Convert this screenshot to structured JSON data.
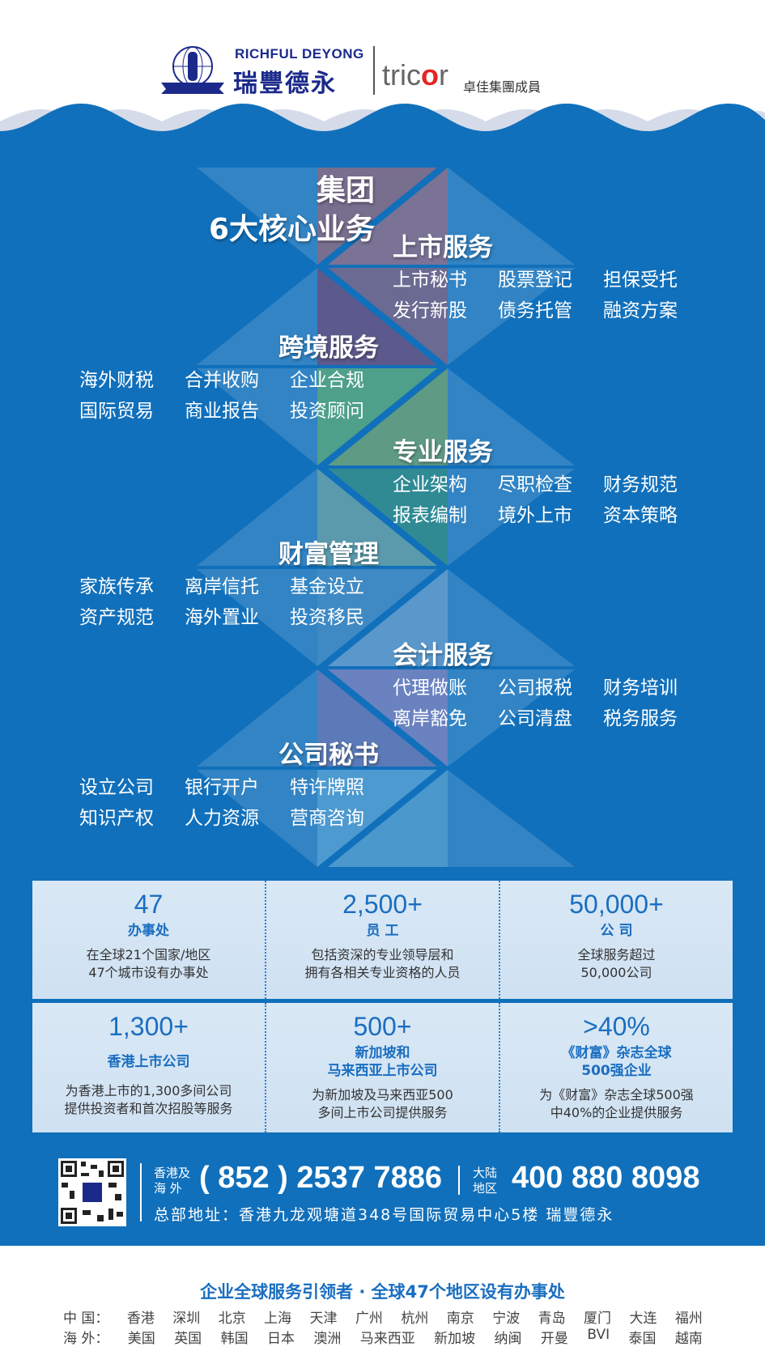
{
  "header": {
    "brand_en": "RICHFUL DEYONG",
    "brand_cn": "瑞豐德永",
    "partner_pre": "tric",
    "partner_o": "o",
    "partner_post": "r",
    "partner_cn": "卓佳集團成員",
    "emblem_text": "RICHFUL DEYONG"
  },
  "colors": {
    "background_blue": "#1170bb",
    "accent_blue": "#1a6ec0",
    "stat_box": "#d6e6f4",
    "tricor_red": "#e52424"
  },
  "intro": {
    "line1": "集团",
    "line2": "6大核心业务"
  },
  "services": [
    {
      "title": "上市服务",
      "items": [
        "上市秘书",
        "股票登记",
        "担保受托",
        "发行新股",
        "债务托管",
        "融资方案"
      ]
    },
    {
      "title": "跨境服务",
      "items": [
        "海外财税",
        "合并收购",
        "企业合规",
        "国际贸易",
        "商业报告",
        "投资顾问"
      ]
    },
    {
      "title": "专业服务",
      "items": [
        "企业架构",
        "尽职检查",
        "财务规范",
        "报表编制",
        "境外上市",
        "资本策略"
      ]
    },
    {
      "title": "财富管理",
      "items": [
        "家族传承",
        "离岸信托",
        "基金设立",
        "资产规范",
        "海外置业",
        "投资移民"
      ]
    },
    {
      "title": "会计服务",
      "items": [
        "代理做账",
        "公司报税",
        "财务培训",
        "离岸豁免",
        "公司清盘",
        "税务服务"
      ]
    },
    {
      "title": "公司秘书",
      "items": [
        "设立公司",
        "银行开户",
        "特许牌照",
        "知识产权",
        "人力资源",
        "营商咨询"
      ]
    }
  ],
  "stats": [
    {
      "number": "47",
      "label": "办事处",
      "desc1": "在全球21个国家/地区",
      "desc2": "47个城市设有办事处"
    },
    {
      "number": "2,500+",
      "label": "员 工",
      "desc1": "包括资深的专业领导层和",
      "desc2": "拥有各相关专业资格的人员"
    },
    {
      "number": "50,000+",
      "label": "公 司",
      "desc1": "全球服务超过",
      "desc2": "50,000公司"
    },
    {
      "number": "1,300+",
      "label": "香港上市公司",
      "desc1": "为香港上市的1,300多间公司",
      "desc2": "提供投资者和首次招股等服务"
    },
    {
      "number": "500+",
      "label": "新加坡和",
      "label2": "马来西亚上市公司",
      "desc1": "为新加坡及马来西亚500",
      "desc2": "多间上市公司提供服务"
    },
    {
      "number": ">40%",
      "label": "《财富》杂志全球",
      "label2": "500强企业",
      "desc1": "为《财富》杂志全球500强",
      "desc2": "中40%的企业提供服务"
    }
  ],
  "contact": {
    "hk_label1": "香港及",
    "hk_label2": "海 外",
    "hk_phone": "( 852 ) 2537 7886",
    "cn_label1": "大陆",
    "cn_label2": "地区",
    "cn_phone": "400 880 8098",
    "address": "总部地址：香港九龙观塘道348号国际贸易中心5楼 瑞豐德永"
  },
  "footer": {
    "title": "企业全球服务引领者 · 全球47个地区设有办事处",
    "china_label": "中 国：",
    "china": [
      "香港",
      "深圳",
      "北京",
      "上海",
      "天津",
      "广州",
      "杭州",
      "南京",
      "宁波",
      "青岛",
      "厦门",
      "大连",
      "福州"
    ],
    "overseas_label": "海 外：",
    "overseas": [
      "美国",
      "英国",
      "韩国",
      "日本",
      "澳洲",
      "马来西亚",
      "新加坡",
      "纳闽",
      "开曼",
      "BVI",
      "泰国",
      "越南"
    ]
  }
}
